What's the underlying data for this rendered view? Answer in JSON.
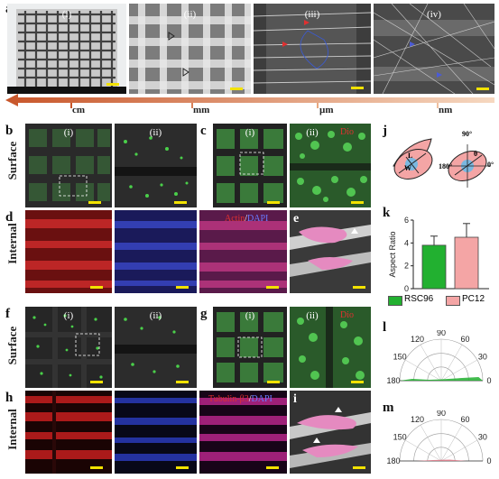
{
  "panels": {
    "a": {
      "letter": "a",
      "subs": [
        "(i)",
        "(ii)",
        "(iii)",
        "(iv)"
      ],
      "scale_labels": [
        "cm",
        "mm",
        "µm",
        "nm"
      ]
    },
    "b": {
      "letter": "b",
      "subs": [
        "(i)",
        "(ii)"
      ]
    },
    "c": {
      "letter": "c",
      "subs": [
        "(i)",
        "(ii)"
      ],
      "stain": "Dio"
    },
    "d": {
      "letter": "d",
      "stain1": "Actin",
      "stain_sep": "/",
      "stain2": "DAPI"
    },
    "e": {
      "letter": "e"
    },
    "f": {
      "letter": "f",
      "subs": [
        "(i)",
        "(ii)"
      ]
    },
    "g": {
      "letter": "g",
      "subs": [
        "(i)",
        "(ii)"
      ],
      "stain": "Dio"
    },
    "h": {
      "letter": "h",
      "stain1": "Tubulin-β3",
      "stain_sep": "/",
      "stain2": "DAPI"
    },
    "i": {
      "letter": "i"
    },
    "j": {
      "letter": "j",
      "L": "L",
      "W": "W",
      "a90": "90°",
      "a180": "180°",
      "a0": "0°",
      "theta": "θ"
    },
    "k": {
      "letter": "k"
    },
    "l": {
      "letter": "l"
    },
    "m": {
      "letter": "m"
    }
  },
  "row_labels": {
    "surface1": "Surface",
    "internal1": "Internal",
    "surface2": "Surface",
    "internal2": "Internal"
  },
  "colors": {
    "rsc96": "#22b030",
    "pc12": "#f4a5a5",
    "scale_bar": "#f2e200",
    "arrow_start": "#f4c8a0",
    "arrow_end": "#c8562a"
  },
  "chart_data": [
    {
      "type": "bar",
      "categories": [
        "RSC96",
        "PC12"
      ],
      "values": [
        3.8,
        4.5
      ],
      "errors": [
        0.8,
        1.2
      ],
      "ylabel": "Aspect Ratio",
      "ylim": [
        0,
        6
      ],
      "yticks": [
        0,
        2,
        4,
        6
      ],
      "legend": [
        {
          "name": "RSC96",
          "color": "#22b030"
        },
        {
          "name": "PC12",
          "color": "#f4a5a5"
        }
      ]
    },
    {
      "type": "polar",
      "panel": "l",
      "angle_ticks": [
        "180",
        "150",
        "120",
        "90",
        "60",
        "30",
        "0"
      ],
      "series_color": "#22b030"
    },
    {
      "type": "polar",
      "panel": "m",
      "angle_ticks": [
        "180",
        "150",
        "120",
        "90",
        "60",
        "30",
        "0"
      ],
      "series_color": "#e07a8a"
    }
  ]
}
